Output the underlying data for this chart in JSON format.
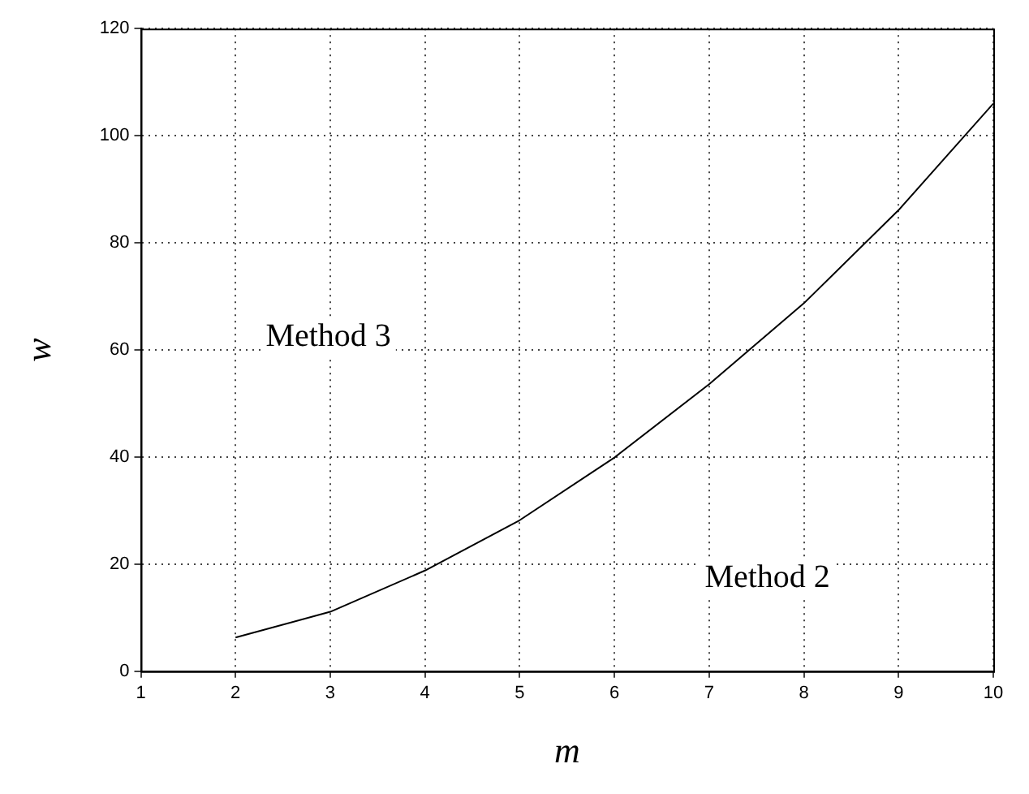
{
  "chart_data": {
    "type": "line",
    "xlabel": "m",
    "ylabel": "w",
    "x": [
      2,
      3,
      4,
      5,
      6,
      7,
      8,
      9,
      10
    ],
    "series": [
      {
        "color": "#000000",
        "values": [
          6.3,
          11.1,
          18.8,
          28.2,
          39.9,
          53.6,
          68.7,
          86.1,
          106
        ]
      }
    ],
    "xlim": [
      1,
      10
    ],
    "xticks": [
      1,
      2,
      3,
      4,
      5,
      6,
      7,
      8,
      9,
      10
    ],
    "ylim": [
      0,
      120
    ],
    "yticks": [
      0,
      20,
      40,
      60,
      80,
      100,
      120
    ],
    "grid": true,
    "legend": false,
    "marker": "none",
    "line_style": "solid",
    "annotations": [
      "Method 3",
      "Method 2"
    ]
  }
}
